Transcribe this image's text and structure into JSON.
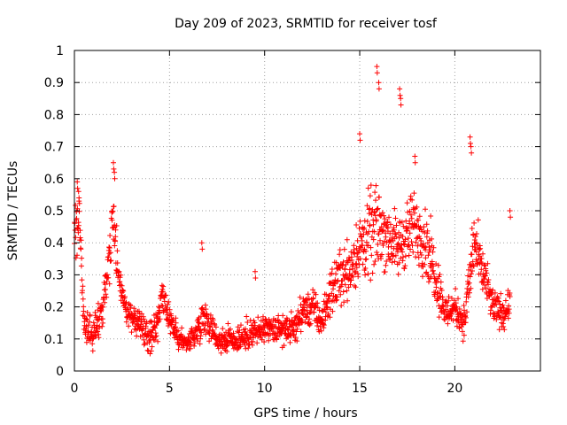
{
  "chart_data": {
    "type": "scatter",
    "title": "Day 209 of 2023, SRMTID for receiver tosf",
    "xlabel": "GPS time / hours",
    "ylabel": "SRMTID / TECUs",
    "xlim": [
      0,
      24.5
    ],
    "ylim": [
      0,
      1
    ],
    "xticks": [
      0,
      5,
      10,
      15,
      20
    ],
    "xtick_labels": [
      "0",
      "5",
      "10",
      "15",
      "20"
    ],
    "yticks": [
      0,
      0.1,
      0.2,
      0.3,
      0.4,
      0.5,
      0.6,
      0.7,
      0.8,
      0.9,
      1
    ],
    "ytick_labels": [
      "0",
      "0.1",
      "0.2",
      "0.3",
      "0.4",
      "0.5",
      "0.6",
      "0.7",
      "0.8",
      "0.9",
      "1"
    ],
    "grid": true,
    "marker": "+",
    "series": [
      {
        "name": "SRMTID",
        "color": "#ff0000",
        "profile": [
          [
            0.0,
            0.38,
            0.1
          ],
          [
            0.1,
            0.45,
            0.1
          ],
          [
            0.25,
            0.52,
            0.08
          ],
          [
            0.4,
            0.3,
            0.1
          ],
          [
            0.5,
            0.13,
            0.05
          ],
          [
            1.0,
            0.12,
            0.05
          ],
          [
            1.5,
            0.2,
            0.07
          ],
          [
            1.9,
            0.4,
            0.1
          ],
          [
            2.0,
            0.5,
            0.12
          ],
          [
            2.3,
            0.32,
            0.08
          ],
          [
            2.7,
            0.19,
            0.05
          ],
          [
            3.5,
            0.14,
            0.05
          ],
          [
            4.0,
            0.1,
            0.05
          ],
          [
            4.3,
            0.14,
            0.06
          ],
          [
            4.6,
            0.22,
            0.06
          ],
          [
            5.0,
            0.16,
            0.05
          ],
          [
            5.5,
            0.1,
            0.04
          ],
          [
            6.0,
            0.09,
            0.04
          ],
          [
            6.5,
            0.13,
            0.05
          ],
          [
            6.8,
            0.18,
            0.06
          ],
          [
            7.5,
            0.1,
            0.04
          ],
          [
            8.5,
            0.1,
            0.05
          ],
          [
            9.5,
            0.12,
            0.05
          ],
          [
            10.5,
            0.13,
            0.05
          ],
          [
            11.5,
            0.13,
            0.05
          ],
          [
            12.0,
            0.18,
            0.06
          ],
          [
            12.5,
            0.2,
            0.07
          ],
          [
            13.0,
            0.15,
            0.05
          ],
          [
            13.5,
            0.25,
            0.08
          ],
          [
            14.0,
            0.3,
            0.1
          ],
          [
            14.5,
            0.32,
            0.1
          ],
          [
            15.0,
            0.38,
            0.12
          ],
          [
            15.5,
            0.42,
            0.15
          ],
          [
            16.0,
            0.45,
            0.14
          ],
          [
            16.5,
            0.42,
            0.12
          ],
          [
            17.0,
            0.38,
            0.1
          ],
          [
            17.5,
            0.43,
            0.12
          ],
          [
            18.0,
            0.45,
            0.12
          ],
          [
            18.5,
            0.4,
            0.12
          ],
          [
            19.0,
            0.3,
            0.1
          ],
          [
            19.5,
            0.18,
            0.06
          ],
          [
            20.0,
            0.2,
            0.06
          ],
          [
            20.5,
            0.15,
            0.06
          ],
          [
            21.0,
            0.4,
            0.12
          ],
          [
            21.5,
            0.3,
            0.08
          ],
          [
            22.0,
            0.2,
            0.06
          ],
          [
            22.5,
            0.18,
            0.06
          ],
          [
            22.8,
            0.2,
            0.06
          ]
        ],
        "spikes": [
          [
            0.15,
            0.59
          ],
          [
            0.22,
            0.56
          ],
          [
            2.05,
            0.65
          ],
          [
            2.1,
            0.62
          ],
          [
            6.7,
            0.4
          ],
          [
            9.5,
            0.31
          ],
          [
            15.0,
            0.74
          ],
          [
            15.9,
            0.95
          ],
          [
            16.0,
            0.9
          ],
          [
            17.1,
            0.88
          ],
          [
            17.15,
            0.85
          ],
          [
            17.9,
            0.67
          ],
          [
            20.8,
            0.73
          ],
          [
            20.85,
            0.7
          ],
          [
            22.9,
            0.5
          ]
        ],
        "n_points": 1700,
        "x_range": [
          0,
          22.9
        ]
      }
    ]
  }
}
